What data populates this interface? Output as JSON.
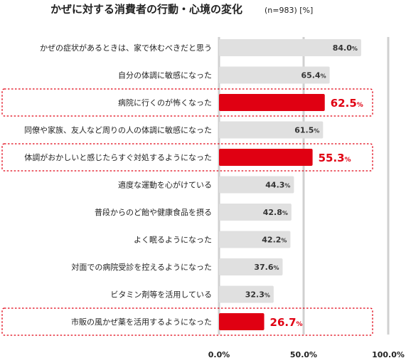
{
  "chart_data": {
    "type": "bar",
    "orientation": "horizontal",
    "title": "かぜに対する消費者の行動・心境の変化",
    "subtitle": "(n=983) [%]",
    "categories": [
      "かぜの症状があるときは、家で休むべきだと思う",
      "自分の体調に敏感になった",
      "病院に行くのが怖くなった",
      "同僚や家族、友人など周りの人の体調に敏感になった",
      "体調がおかしいと感じたらすぐ対処するようになった",
      "適度な運動を心がけている",
      "普段からのど飴や健康食品を摂る",
      "よく眠るようになった",
      "対面での病院受診を控えるようになった",
      "ビタミン剤等を活用している",
      "市販の風かぜ薬を活用するようになった"
    ],
    "values": [
      84.0,
      65.4,
      62.5,
      61.5,
      55.3,
      44.3,
      42.8,
      42.2,
      37.6,
      32.3,
      26.7
    ],
    "value_labels": [
      "84.0",
      "65.4",
      "62.5",
      "61.5",
      "55.3",
      "44.3",
      "42.8",
      "42.2",
      "37.6",
      "32.3",
      "26.7"
    ],
    "value_unit": "%",
    "highlighted": [
      false,
      false,
      true,
      false,
      true,
      false,
      false,
      false,
      false,
      false,
      true
    ],
    "xlim": [
      0,
      100
    ],
    "x_ticks": [
      "0.0%",
      "50.0%",
      "100.0%"
    ],
    "grid": true,
    "colors": {
      "bar": "#e0e0e0",
      "highlight": "#e00012",
      "label_normal": "#333333",
      "gridline": "#d0d0d0",
      "highlight_border": "#e00012"
    }
  }
}
